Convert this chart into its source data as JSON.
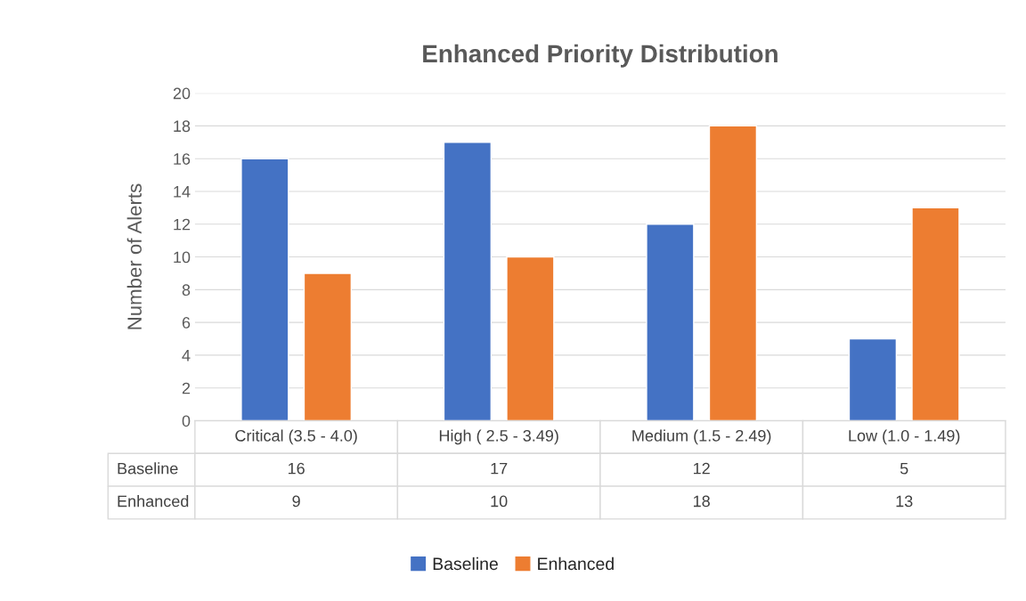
{
  "chart_data": {
    "type": "bar",
    "title": "Enhanced Priority Distribution",
    "ylabel": "Number of Alerts",
    "categories": [
      "Critical (3.5 - 4.0)",
      "High ( 2.5 - 3.49)",
      "Medium (1.5 - 2.49)",
      "Low (1.0 - 1.49)"
    ],
    "series": [
      {
        "name": "Baseline",
        "color": "#4472c4",
        "values": [
          16,
          17,
          12,
          5
        ]
      },
      {
        "name": "Enhanced",
        "color": "#ed7d31",
        "values": [
          9,
          10,
          18,
          13
        ]
      }
    ],
    "ylim": [
      0,
      20
    ],
    "yticks": [
      0,
      2,
      4,
      6,
      8,
      10,
      12,
      14,
      16,
      18,
      20
    ],
    "grid": "y",
    "legend": "bottom",
    "data_labels": true
  }
}
